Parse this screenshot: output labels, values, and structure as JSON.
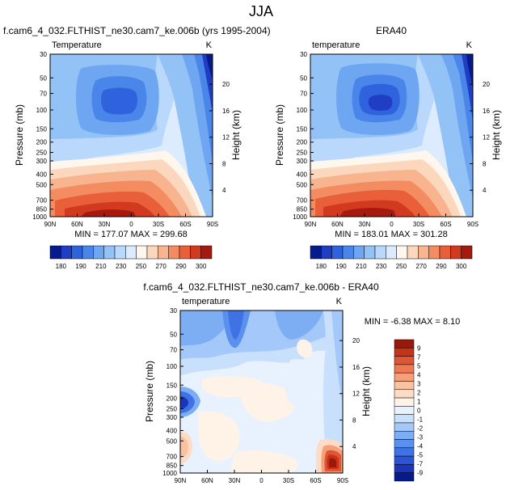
{
  "page": {
    "title": "JJA"
  },
  "colors": {
    "model_levels": [
      180,
      190,
      200,
      210,
      220,
      230,
      240,
      250,
      260,
      270,
      280,
      290,
      300
    ],
    "model_palette": [
      "#061a8c",
      "#1f3ec4",
      "#2f62dd",
      "#4a86ea",
      "#6ea6f2",
      "#93c2f7",
      "#b9d8fb",
      "#dcebfd",
      "#fff6ee",
      "#fbd8bd",
      "#f8b48e",
      "#f48c62",
      "#e95f3a",
      "#d23a1f",
      "#a5190e"
    ],
    "diff_levels": [
      -9,
      -7,
      -5,
      -4,
      -3,
      -2,
      -1,
      0,
      1,
      2,
      3,
      4,
      5,
      7,
      9
    ],
    "diff_palette": [
      "#061a8c",
      "#1b35b9",
      "#2b54d6",
      "#3f73e5",
      "#5b91ee",
      "#7daef4",
      "#a3c8f9",
      "#c9e0fc",
      "#e8f2fe",
      "#fff3e8",
      "#fcdcc6",
      "#f9c2a2",
      "#f5a07a",
      "#ee7a53",
      "#e05533",
      "#c53319",
      "#9a170b"
    ]
  },
  "chart_data": [
    {
      "type": "heatmap",
      "id": "model",
      "title": "f.cam6_4_032.FLTHIST_ne30.cam7_ke.006b (yrs 1995-2004)",
      "left_label": "Temperature",
      "right_label": "K",
      "xlabel": "",
      "ylabel": "Pressure (mb)",
      "y2label": "Height (km)",
      "x_ticks": [
        "90N",
        "60N",
        "30N",
        "0",
        "30S",
        "60S",
        "90S"
      ],
      "y_ticks": [
        30,
        50,
        70,
        100,
        150,
        200,
        250,
        300,
        400,
        500,
        700,
        850,
        1000
      ],
      "y2_ticks": [
        20,
        16,
        12,
        8,
        4
      ],
      "stats": "MIN = 177.07  MAX = 299.68",
      "colorbar_labels": [
        "180",
        "190",
        "210",
        "230",
        "250",
        "270",
        "290",
        "300"
      ]
    },
    {
      "type": "heatmap",
      "id": "obs",
      "title": "ERA40",
      "left_label": "temperature",
      "right_label": "K",
      "xlabel": "",
      "ylabel": "Pressure (mb)",
      "y2label": "Height (km)",
      "x_ticks": [
        "90N",
        "60N",
        "30N",
        "0",
        "30S",
        "60S",
        "90S"
      ],
      "y_ticks": [
        30,
        50,
        70,
        100,
        150,
        200,
        250,
        300,
        400,
        500,
        700,
        850,
        1000
      ],
      "y2_ticks": [
        20,
        16,
        12,
        8,
        4
      ],
      "stats": "MIN = 183.01  MAX = 301.28",
      "colorbar_labels": [
        "180",
        "190",
        "210",
        "230",
        "250",
        "270",
        "290",
        "300"
      ]
    },
    {
      "type": "heatmap",
      "id": "diff",
      "title": "f.cam6_4_032.FLTHIST_ne30.cam7_ke.006b - ERA40",
      "left_label": "temperature",
      "right_label": "K",
      "xlabel": "",
      "ylabel": "Pressure (mb)",
      "y2label": "Height (km)",
      "x_ticks": [
        "90N",
        "60N",
        "30N",
        "0",
        "30S",
        "60S",
        "90S"
      ],
      "y_ticks": [
        30,
        50,
        70,
        100,
        150,
        200,
        250,
        300,
        400,
        500,
        700,
        850,
        1000
      ],
      "y2_ticks": [
        20,
        16,
        12,
        8,
        4
      ],
      "stats": "MIN =  -6.38  MAX =   8.10",
      "colorbar_labels": [
        "9",
        "7",
        "5",
        "4",
        "3",
        "2",
        "1",
        "0",
        "-1",
        "-2",
        "-3",
        "-4",
        "-5",
        "-7",
        "-9"
      ]
    }
  ]
}
